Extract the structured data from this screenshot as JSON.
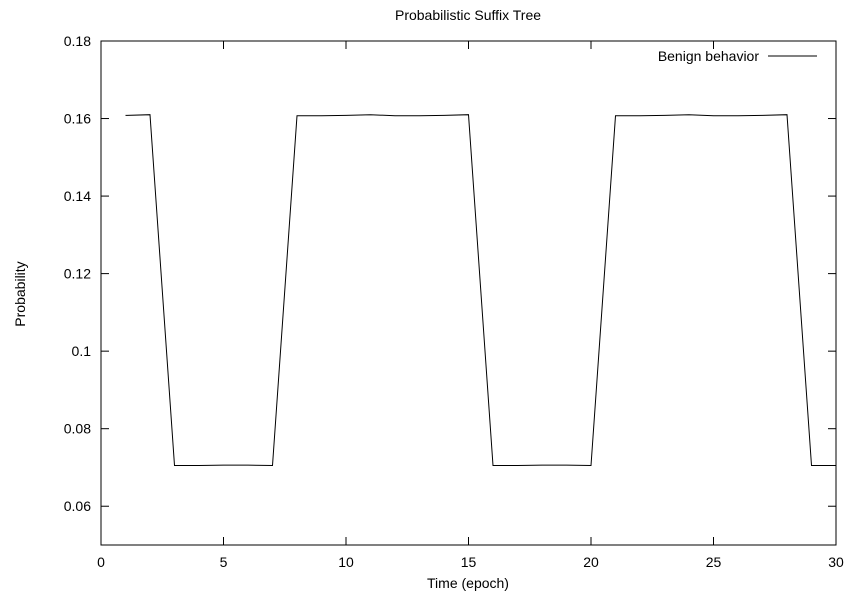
{
  "chart_data": {
    "type": "line",
    "title": "Probabilistic Suffix Tree",
    "xlabel": "Time (epoch)",
    "ylabel": "Probability",
    "xlim": [
      0,
      30
    ],
    "ylim": [
      0.05,
      0.18
    ],
    "xticks": [
      0,
      5,
      10,
      15,
      20,
      25,
      30
    ],
    "yticks": [
      0.06,
      0.08,
      0.1,
      0.12,
      0.14,
      0.16,
      0.18
    ],
    "ytick_labels": [
      "0.06",
      "0.08",
      "0.1",
      "0.12",
      "0.14",
      "0.16",
      "0.18"
    ],
    "grid": false,
    "legend_position": "top-right",
    "series": [
      {
        "name": "Benign behavior",
        "color": "#000000",
        "x": [
          1,
          2,
          3,
          4,
          5,
          6,
          7,
          8,
          9,
          10,
          11,
          12,
          13,
          14,
          15,
          16,
          17,
          18,
          19,
          20,
          21,
          22,
          23,
          24,
          25,
          26,
          27,
          28,
          29,
          30
        ],
        "y": [
          0.1608,
          0.161,
          0.0705,
          0.0705,
          0.0706,
          0.0706,
          0.0705,
          0.1607,
          0.1607,
          0.1608,
          0.161,
          0.1607,
          0.1607,
          0.1608,
          0.161,
          0.0705,
          0.0705,
          0.0706,
          0.0706,
          0.0705,
          0.1607,
          0.1607,
          0.1608,
          0.161,
          0.1607,
          0.1607,
          0.1608,
          0.161,
          0.0705,
          0.0705
        ]
      }
    ]
  }
}
